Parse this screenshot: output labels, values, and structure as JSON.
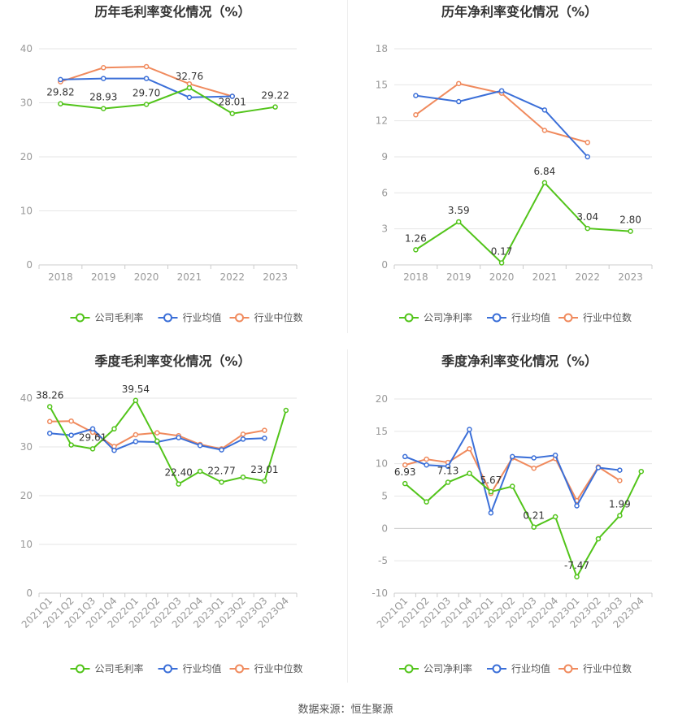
{
  "source": "数据来源：恒生聚源",
  "colors": {
    "company": "#52c41a",
    "avg": "#3b6fd8",
    "median": "#f08a5d",
    "grid": "#e6e6e6",
    "axis": "#999999",
    "label": "#333333"
  },
  "chart_data": [
    {
      "type": "line",
      "title": "历年毛利率变化情况（%）",
      "categories": [
        "2018",
        "2019",
        "2020",
        "2021",
        "2022",
        "2023"
      ],
      "ylim": [
        0,
        40
      ],
      "yticks": [
        0,
        10,
        20,
        30,
        40
      ],
      "grid": true,
      "legend_position": "bottom",
      "series": [
        {
          "name": "公司毛利率",
          "role": "company",
          "values": [
            29.82,
            28.93,
            29.7,
            32.76,
            28.01,
            29.22
          ],
          "labels": [
            "29.82",
            "28.93",
            "29.70",
            "32.76",
            "28.01",
            "29.22"
          ]
        },
        {
          "name": "行业均值",
          "role": "avg",
          "values": [
            34.3,
            34.5,
            34.5,
            31.0,
            31.2,
            null
          ]
        },
        {
          "name": "行业中位数",
          "role": "median",
          "values": [
            33.9,
            36.5,
            36.7,
            33.5,
            31.2,
            null
          ]
        }
      ]
    },
    {
      "type": "line",
      "title": "历年净利率变化情况（%）",
      "categories": [
        "2018",
        "2019",
        "2020",
        "2021",
        "2022",
        "2023"
      ],
      "ylim": [
        0,
        18
      ],
      "yticks": [
        0,
        3,
        6,
        9,
        12,
        15,
        18
      ],
      "grid": true,
      "legend_position": "bottom",
      "series": [
        {
          "name": "公司净利率",
          "role": "company",
          "values": [
            1.26,
            3.59,
            0.17,
            6.84,
            3.04,
            2.8
          ],
          "labels": [
            "1.26",
            "3.59",
            "0.17",
            "6.84",
            "3.04",
            "2.80"
          ]
        },
        {
          "name": "行业均值",
          "role": "avg",
          "values": [
            14.1,
            13.6,
            14.5,
            12.9,
            9.0,
            null
          ]
        },
        {
          "name": "行业中位数",
          "role": "median",
          "values": [
            12.5,
            15.1,
            14.3,
            11.2,
            10.2,
            null
          ]
        }
      ]
    },
    {
      "type": "line",
      "title": "季度毛利率变化情况（%）",
      "categories": [
        "2021Q1",
        "2021Q2",
        "2021Q3",
        "2021Q4",
        "2022Q1",
        "2022Q2",
        "2022Q3",
        "2022Q4",
        "2023Q1",
        "2023Q2",
        "2023Q3",
        "2023Q4"
      ],
      "ylim": [
        0,
        40
      ],
      "yticks": [
        0,
        10,
        20,
        30,
        40
      ],
      "grid": true,
      "legend_position": "bottom",
      "series": [
        {
          "name": "公司毛利率",
          "role": "company",
          "values": [
            38.26,
            30.4,
            29.61,
            33.7,
            39.54,
            31.2,
            22.4,
            25.0,
            22.77,
            23.8,
            23.01,
            37.5
          ],
          "labels": [
            "38.26",
            "",
            "29.61",
            "",
            "39.54",
            "",
            "22.40",
            "",
            "22.77",
            "",
            "23.01",
            ""
          ]
        },
        {
          "name": "行业均值",
          "role": "avg",
          "values": [
            32.8,
            32.4,
            33.7,
            29.3,
            31.1,
            31.0,
            31.9,
            30.3,
            29.4,
            31.6,
            31.8,
            null
          ]
        },
        {
          "name": "行业中位数",
          "role": "median",
          "values": [
            35.2,
            35.3,
            33.0,
            30.1,
            32.5,
            32.9,
            32.3,
            30.5,
            29.6,
            32.6,
            33.4,
            null
          ]
        }
      ]
    },
    {
      "type": "line",
      "title": "季度净利率变化情况（%）",
      "categories": [
        "2021Q1",
        "2021Q2",
        "2021Q3",
        "2021Q4",
        "2022Q1",
        "2022Q2",
        "2022Q3",
        "2022Q4",
        "2023Q1",
        "2023Q2",
        "2023Q3",
        "2023Q4"
      ],
      "ylim": [
        -10,
        20
      ],
      "yticks": [
        -10,
        -5,
        0,
        5,
        10,
        15,
        20
      ],
      "grid": true,
      "legend_position": "bottom",
      "series": [
        {
          "name": "公司净利率",
          "role": "company",
          "values": [
            6.93,
            4.1,
            7.13,
            8.5,
            5.67,
            6.5,
            0.21,
            1.8,
            -7.47,
            -1.6,
            1.99,
            8.8
          ],
          "labels": [
            "6.93",
            "",
            "7.13",
            "",
            "5.67",
            "",
            "0.21",
            "",
            "-7.47",
            "",
            "1.99",
            ""
          ]
        },
        {
          "name": "行业均值",
          "role": "avg",
          "values": [
            11.1,
            9.8,
            9.6,
            15.3,
            2.4,
            11.1,
            10.9,
            11.3,
            3.5,
            9.4,
            9.0,
            null
          ]
        },
        {
          "name": "行业中位数",
          "role": "median",
          "values": [
            9.8,
            10.7,
            10.2,
            12.3,
            5.4,
            10.9,
            9.3,
            10.8,
            4.3,
            9.5,
            7.4,
            null
          ]
        }
      ]
    }
  ]
}
